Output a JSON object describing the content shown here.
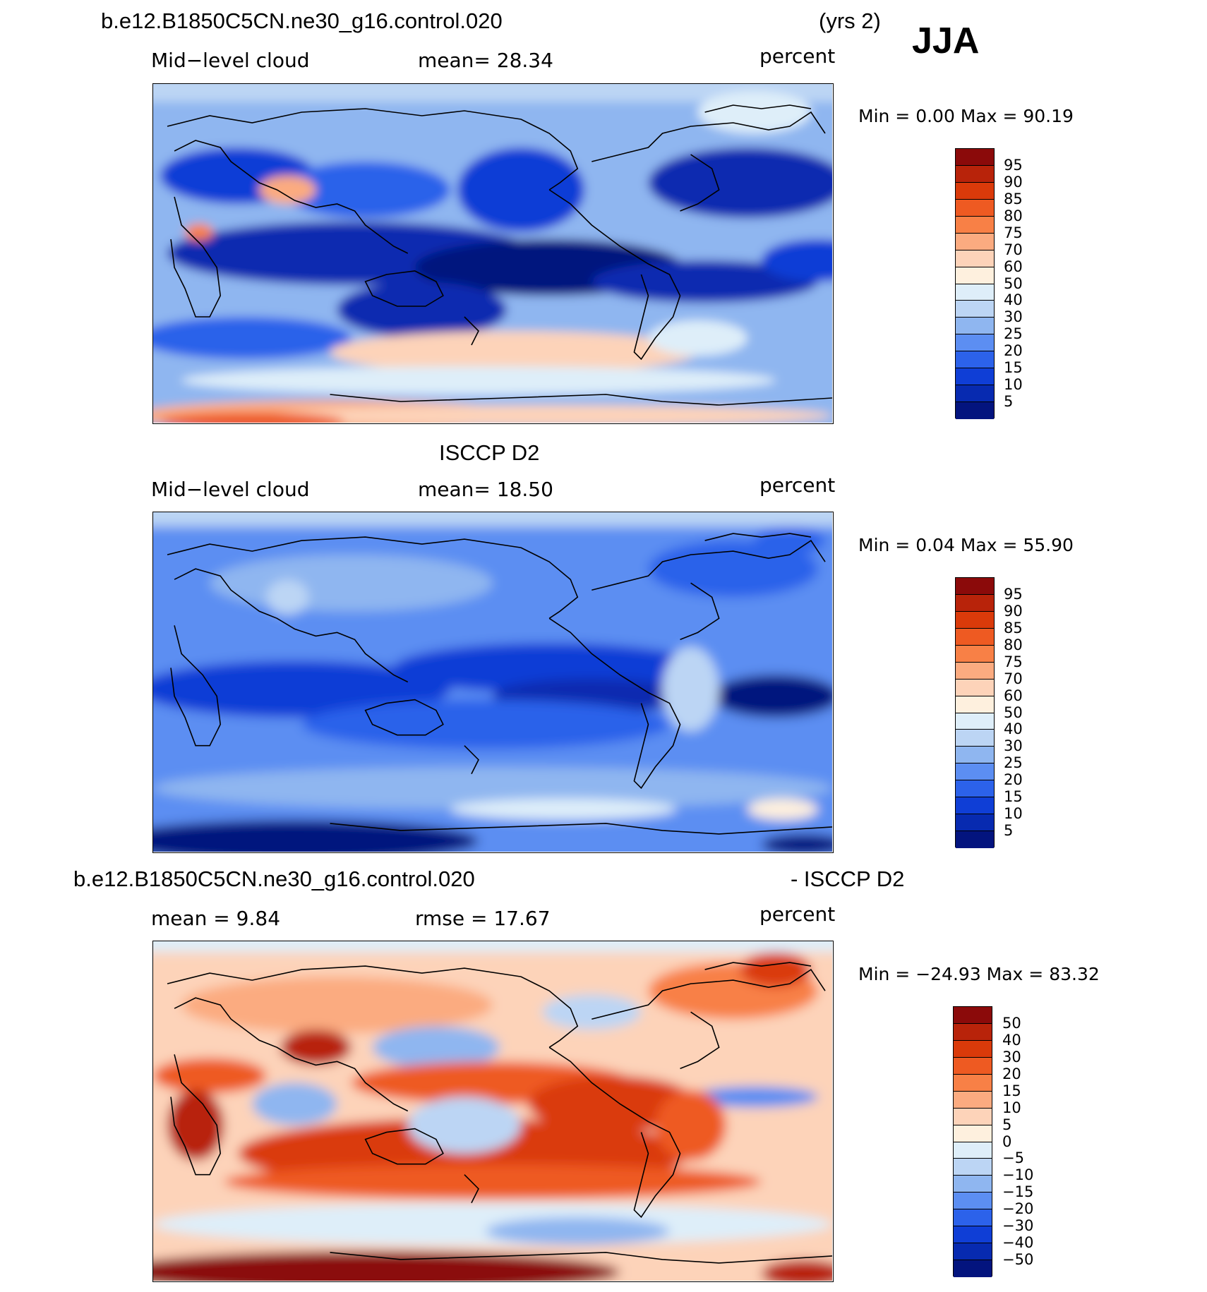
{
  "header": {
    "case_name": "b.e12.B1850C5CN.ne30_g16.control.020",
    "years": "(yrs 2)",
    "season": "JJA"
  },
  "panels": [
    {
      "id": "model",
      "title": "",
      "left_label": "Mid−level cloud",
      "center_label": "mean=   28.34",
      "right_label": "percent",
      "minmax": "Min =     0.00 Max =   90.19",
      "colorbar": {
        "levels": [
          "95",
          "90",
          "85",
          "80",
          "75",
          "70",
          "60",
          "50",
          "40",
          "30",
          "25",
          "20",
          "15",
          "10",
          "5"
        ],
        "colors": [
          "#8b0a0a",
          "#b8230a",
          "#da3a0a",
          "#ee5a22",
          "#f88046",
          "#fbab80",
          "#fdd3b9",
          "#fef0de",
          "#deeef9",
          "#bcd5f4",
          "#8fb6f0",
          "#5c8ef2",
          "#2c62ea",
          "#0f3ed6",
          "#072ab0",
          "#03147e"
        ]
      }
    },
    {
      "id": "obs",
      "title": "ISCCP D2",
      "left_label": "Mid−level cloud",
      "center_label": "mean=   18.50",
      "right_label": "percent",
      "minmax": "Min =     0.04 Max =   55.90",
      "colorbar": {
        "levels": [
          "95",
          "90",
          "85",
          "80",
          "75",
          "70",
          "60",
          "50",
          "40",
          "30",
          "25",
          "20",
          "15",
          "10",
          "5"
        ],
        "colors": [
          "#8b0a0a",
          "#b8230a",
          "#da3a0a",
          "#ee5a22",
          "#f88046",
          "#fbab80",
          "#fdd3b9",
          "#fef0de",
          "#deeef9",
          "#bcd5f4",
          "#8fb6f0",
          "#5c8ef2",
          "#2c62ea",
          "#0f3ed6",
          "#072ab0",
          "#03147e"
        ]
      }
    },
    {
      "id": "diff",
      "title_left": "b.e12.B1850C5CN.ne30_g16.control.020",
      "title_right": "- ISCCP D2",
      "left_label": "mean =    9.84",
      "center_label": "rmse =    17.67",
      "right_label": "percent",
      "minmax": "Min = −24.93 Max =   83.32",
      "colorbar": {
        "levels": [
          "50",
          "40",
          "30",
          "20",
          "15",
          "10",
          "5",
          "0",
          "−5",
          "−10",
          "−15",
          "−20",
          "−30",
          "−40",
          "−50"
        ],
        "colors": [
          "#8b0a0a",
          "#b8230a",
          "#da3a0a",
          "#ee5a22",
          "#f88046",
          "#fbab80",
          "#fdd3b9",
          "#fef0de",
          "#deeef9",
          "#bcd5f4",
          "#8fb6f0",
          "#5c8ef2",
          "#2c62ea",
          "#0f3ed6",
          "#072ab0",
          "#03147e"
        ]
      }
    }
  ]
}
